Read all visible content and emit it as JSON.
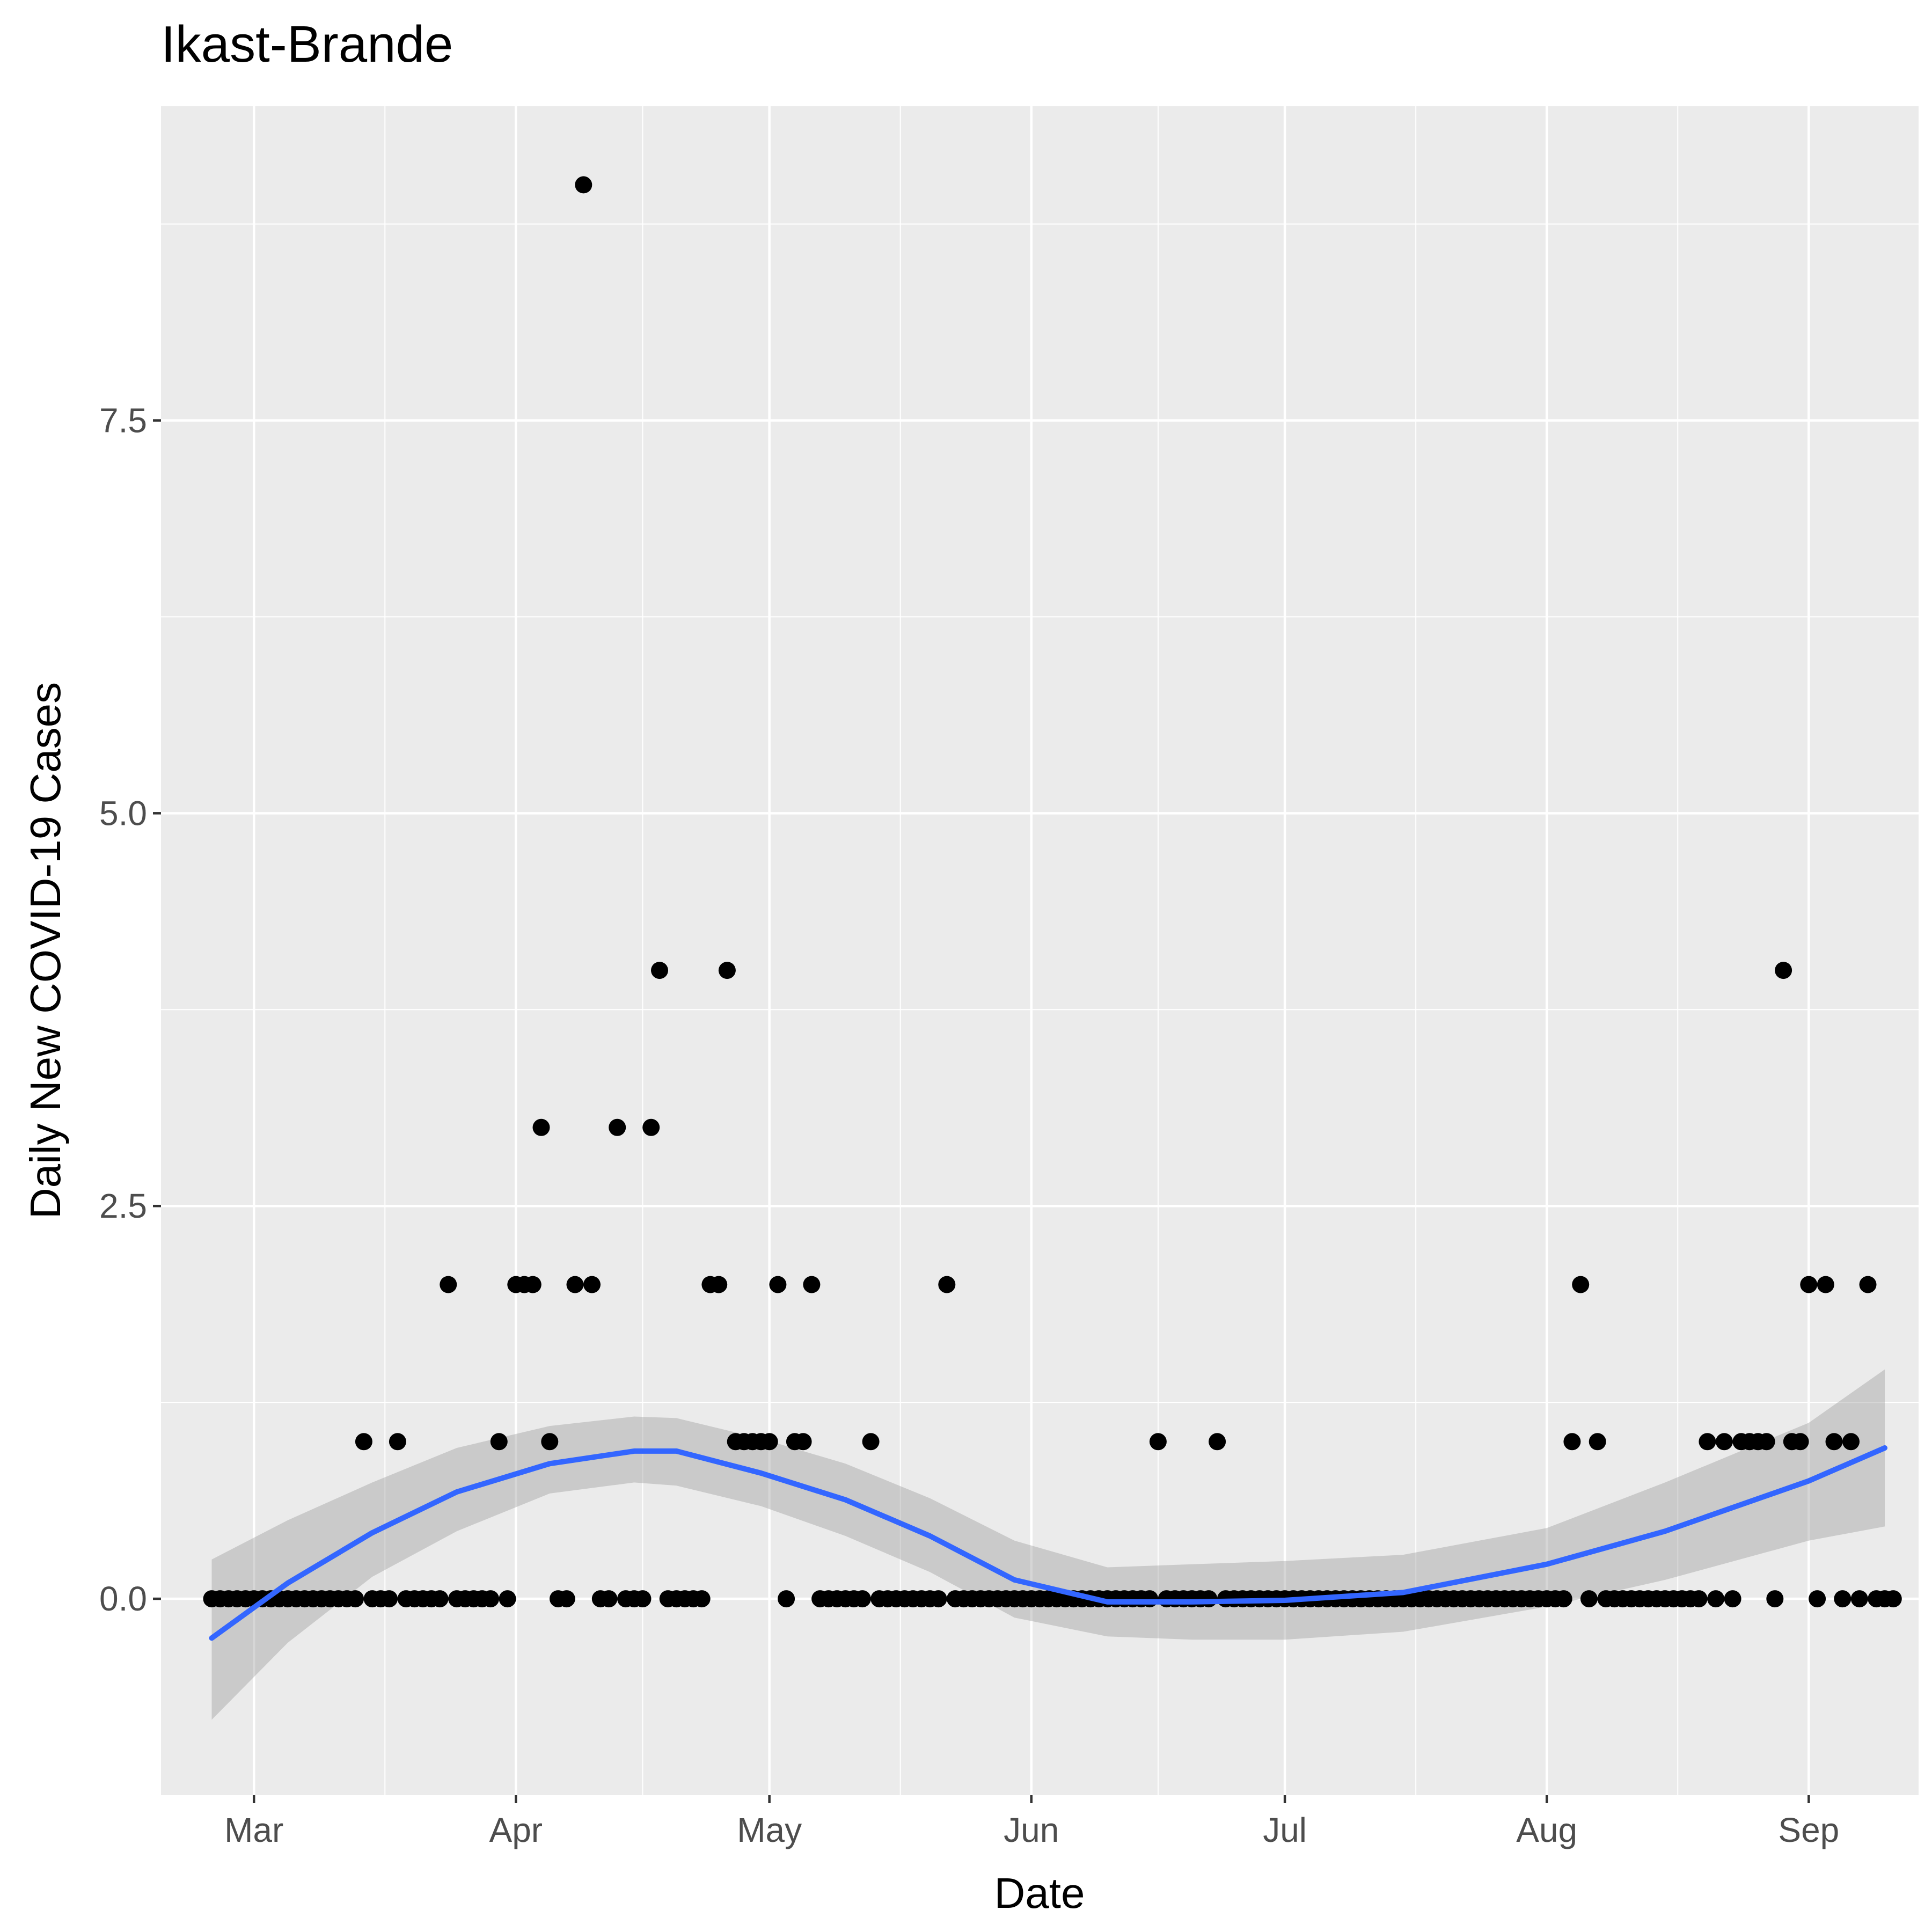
{
  "chart_data": {
    "type": "scatter",
    "title": "Ikast-Brande",
    "xlabel": "Date",
    "ylabel": "Daily New COVID-19 Cases",
    "x_range": [
      "2020-02-19",
      "2020-09-14"
    ],
    "y_range": [
      -1.25,
      9.5
    ],
    "x_ticks": [
      {
        "date": "2020-03-01",
        "label": "Mar"
      },
      {
        "date": "2020-04-01",
        "label": "Apr"
      },
      {
        "date": "2020-05-01",
        "label": "May"
      },
      {
        "date": "2020-06-01",
        "label": "Jun"
      },
      {
        "date": "2020-07-01",
        "label": "Jul"
      },
      {
        "date": "2020-08-01",
        "label": "Aug"
      },
      {
        "date": "2020-09-01",
        "label": "Sep"
      }
    ],
    "y_ticks": [
      {
        "value": 0,
        "label": "0.0"
      },
      {
        "value": 2.5,
        "label": "2.5"
      },
      {
        "value": 5,
        "label": "5.0"
      },
      {
        "value": 7.5,
        "label": "7.5"
      }
    ],
    "grid": true,
    "series": [
      {
        "type": "points",
        "color": "#000000",
        "start_date": "2020-02-25",
        "values": [
          0,
          0,
          0,
          0,
          0,
          0,
          0,
          0,
          0,
          0,
          0,
          0,
          0,
          0,
          0,
          0,
          0,
          0,
          1,
          0,
          0,
          0,
          1,
          0,
          0,
          0,
          0,
          0,
          2,
          0,
          0,
          0,
          0,
          0,
          1,
          0,
          2,
          2,
          2,
          3,
          1,
          0,
          0,
          2,
          9,
          2,
          0,
          0,
          3,
          0,
          0,
          0,
          3,
          4,
          0,
          0,
          0,
          0,
          0,
          2,
          2,
          4,
          1,
          1,
          1,
          1,
          1,
          2,
          0,
          1,
          1,
          2,
          0,
          0,
          0,
          0,
          0,
          0,
          1,
          0,
          0,
          0,
          0,
          0,
          0,
          0,
          0,
          2,
          0,
          0,
          0,
          0,
          0,
          0,
          0,
          0,
          0,
          0,
          0,
          0,
          0,
          0,
          0,
          0,
          0,
          0,
          0,
          0,
          0,
          0,
          0,
          0,
          1,
          0,
          0,
          0,
          0,
          0,
          0,
          1,
          0,
          0,
          0,
          0,
          0,
          0,
          0,
          0,
          0,
          0,
          0,
          0,
          0,
          0,
          0,
          0,
          0,
          0,
          0,
          0,
          0,
          0,
          0,
          0,
          0,
          0,
          0,
          0,
          0,
          0,
          0,
          0,
          0,
          0,
          0,
          0,
          0,
          0,
          0,
          0,
          0,
          1,
          2,
          0,
          1,
          0,
          0,
          0,
          0,
          0,
          0,
          0,
          0,
          0,
          0,
          0,
          0,
          1,
          0,
          1,
          0,
          1,
          1,
          1,
          1,
          0,
          4,
          1,
          1,
          2,
          0,
          2,
          1,
          0,
          1,
          0,
          2,
          0,
          0,
          0
        ]
      },
      {
        "type": "smooth",
        "color": "#3366ff",
        "ribbon_color": "#999999",
        "dates": [
          "2020-02-25",
          "2020-03-05",
          "2020-03-15",
          "2020-03-25",
          "2020-04-05",
          "2020-04-15",
          "2020-04-20",
          "2020-04-30",
          "2020-05-10",
          "2020-05-20",
          "2020-05-30",
          "2020-06-10",
          "2020-06-20",
          "2020-07-01",
          "2020-07-15",
          "2020-08-01",
          "2020-08-15",
          "2020-09-01",
          "2020-09-10"
        ],
        "fit": [
          -0.25,
          0.1,
          0.42,
          0.68,
          0.86,
          0.94,
          0.94,
          0.8,
          0.63,
          0.4,
          0.12,
          -0.02,
          -0.02,
          -0.01,
          0.04,
          0.22,
          0.43,
          0.75,
          0.96
        ],
        "lower": [
          -0.77,
          -0.28,
          0.14,
          0.43,
          0.67,
          0.74,
          0.72,
          0.59,
          0.4,
          0.17,
          -0.12,
          -0.24,
          -0.26,
          -0.26,
          -0.21,
          -0.05,
          0.12,
          0.37,
          0.46
        ],
        "upper": [
          0.25,
          0.5,
          0.74,
          0.96,
          1.1,
          1.16,
          1.15,
          1.02,
          0.86,
          0.64,
          0.37,
          0.2,
          0.22,
          0.24,
          0.28,
          0.45,
          0.74,
          1.12,
          1.46
        ]
      }
    ]
  }
}
